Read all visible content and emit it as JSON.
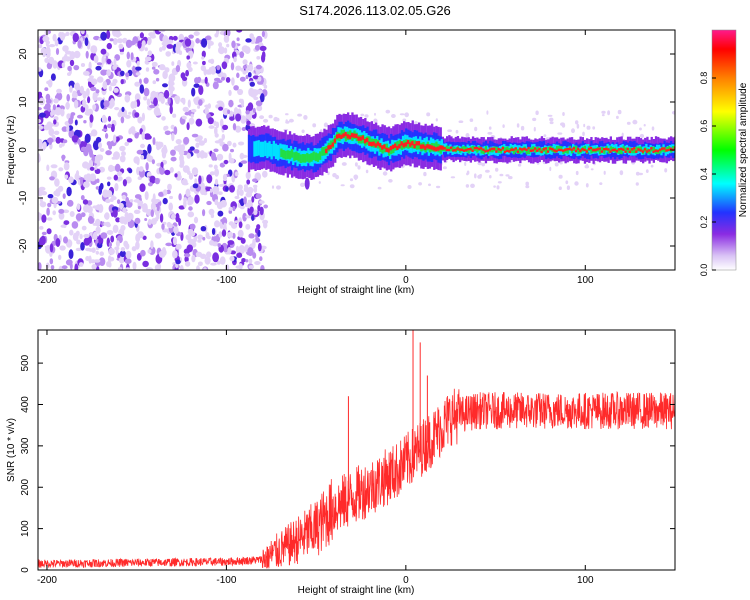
{
  "title": "S174.2026.113.02.05.G26",
  "chart_data": [
    {
      "type": "heatmap",
      "name": "spectrogram",
      "xlabel": "Height of straight line (km)",
      "ylabel": "Frequency (Hz)",
      "xlim": [
        -205,
        150
      ],
      "ylim": [
        -25,
        25
      ],
      "xticks": [
        -200,
        -100,
        0,
        100
      ],
      "yticks": [
        20,
        10,
        0,
        -10,
        -20
      ],
      "ridge": {
        "description_points": [
          {
            "x": -88,
            "y": 0
          },
          {
            "x": -80,
            "y": 0.5
          },
          {
            "x": -70,
            "y": -0.5
          },
          {
            "x": -60,
            "y": -1.5
          },
          {
            "x": -50,
            "y": -1.5
          },
          {
            "x": -42,
            "y": 1
          },
          {
            "x": -38,
            "y": 3
          },
          {
            "x": -30,
            "y": 3
          },
          {
            "x": -20,
            "y": 1.5
          },
          {
            "x": -10,
            "y": 0
          },
          {
            "x": 0,
            "y": 1.5
          },
          {
            "x": 10,
            "y": 0.8
          },
          {
            "x": 20,
            "y": 0.3
          },
          {
            "x": 40,
            "y": 0
          },
          {
            "x": 150,
            "y": 0
          }
        ]
      },
      "noise_region_x": [
        -205,
        -78
      ]
    },
    {
      "type": "colorbar",
      "label": "Normalized spectral amplitude",
      "range": [
        0.0,
        1.0
      ],
      "ticks": [
        "0.0",
        "0.2",
        "0.4",
        "0.6",
        "0.8"
      ],
      "colors": [
        "#ffffff",
        "#d9c2f5",
        "#8a2be2",
        "#2233ff",
        "#00ffff",
        "#00ff00",
        "#ffff00",
        "#ff8000",
        "#ff0000",
        "#ff1a8c"
      ]
    },
    {
      "type": "line",
      "name": "snr",
      "xlabel": "Height of straight line (km)",
      "ylabel": "SNR (10 * v/v)",
      "xlim": [
        -205,
        150
      ],
      "ylim": [
        0,
        580
      ],
      "xticks": [
        -200,
        -100,
        0,
        100
      ],
      "yticks": [
        0,
        100,
        200,
        300,
        400,
        500
      ],
      "color": "#ff2a2a",
      "trend": [
        {
          "x": -205,
          "y": 15
        },
        {
          "x": -100,
          "y": 20
        },
        {
          "x": -80,
          "y": 25
        },
        {
          "x": -65,
          "y": 60
        },
        {
          "x": -50,
          "y": 100
        },
        {
          "x": -40,
          "y": 150
        },
        {
          "x": -20,
          "y": 200
        },
        {
          "x": -5,
          "y": 240
        },
        {
          "x": 5,
          "y": 280
        },
        {
          "x": 15,
          "y": 320
        },
        {
          "x": 25,
          "y": 370
        },
        {
          "x": 40,
          "y": 385
        },
        {
          "x": 100,
          "y": 385
        },
        {
          "x": 150,
          "y": 385
        }
      ],
      "spikes": [
        {
          "x": -32,
          "y": 420
        },
        {
          "x": 4,
          "y": 580
        },
        {
          "x": 8,
          "y": 550
        },
        {
          "x": 12,
          "y": 470
        }
      ]
    }
  ]
}
